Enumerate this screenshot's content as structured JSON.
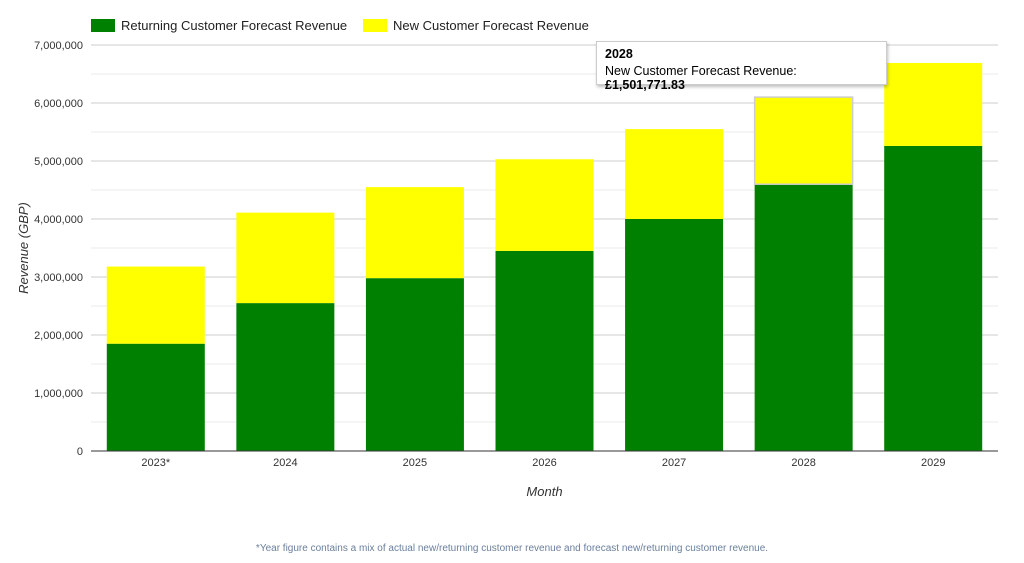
{
  "chart_data": {
    "type": "bar",
    "stacked": true,
    "categories": [
      "2023*",
      "2024",
      "2025",
      "2026",
      "2027",
      "2028",
      "2029"
    ],
    "series": [
      {
        "name": "Returning Customer Forecast Revenue",
        "color": "#008000",
        "values": [
          1850000,
          2550000,
          2980000,
          3450000,
          4000000,
          4600000,
          5260000
        ]
      },
      {
        "name": "New Customer Forecast Revenue",
        "color": "#ffff00",
        "values": [
          1330000,
          1560000,
          1570000,
          1580000,
          1550000,
          1501771.83,
          1430000
        ]
      }
    ],
    "xlabel": "Month",
    "ylabel": "Revenue (GBP)",
    "ylim": [
      0,
      7000000
    ],
    "yticks": [
      0,
      1000000,
      2000000,
      3000000,
      4000000,
      5000000,
      6000000,
      7000000
    ],
    "ytick_labels": [
      "0",
      "1,000,000",
      "2,000,000",
      "3,000,000",
      "4,000,000",
      "5,000,000",
      "6,000,000",
      "7,000,000"
    ],
    "grid": true,
    "legend_position": "top-left",
    "highlight_index": 5
  },
  "tooltip": {
    "title": "2028",
    "label": "New Customer Forecast Revenue: ",
    "value": "£1,501,771.83"
  },
  "footnote": "*Year figure contains a mix of actual new/returning customer revenue and forecast new/returning customer revenue."
}
